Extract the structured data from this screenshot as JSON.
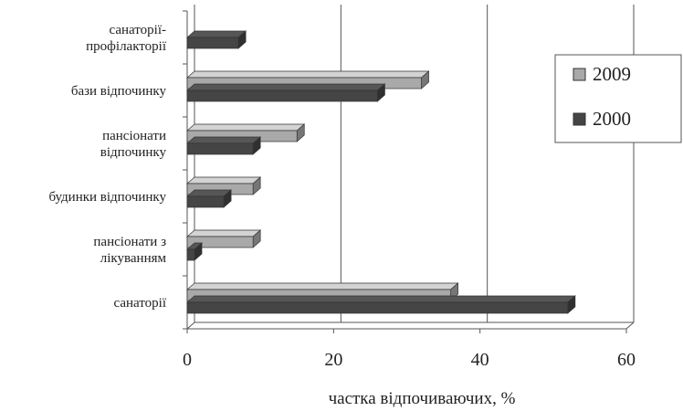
{
  "chart_data": {
    "type": "bar",
    "orientation": "horizontal",
    "categories": [
      [
        "санаторії-",
        "профілакторії"
      ],
      [
        "бази відпочинку"
      ],
      [
        "пансіонати",
        "відпочинку"
      ],
      [
        "будинки відпочинку"
      ],
      [
        "пансіонати з",
        "лікуванням"
      ],
      [
        "санаторії"
      ]
    ],
    "series": [
      {
        "name": "2009",
        "color": "#a9a9a9",
        "values": [
          0,
          32,
          15,
          9,
          9,
          36
        ]
      },
      {
        "name": "2000",
        "color": "#454545",
        "values": [
          7,
          26,
          9,
          5,
          1,
          52
        ]
      }
    ],
    "xlim": [
      0,
      60
    ],
    "x_ticks": [
      0,
      20,
      40,
      60
    ],
    "xlabel": "частка відпочиваючих, %",
    "ylabel": "",
    "grid": "vertical",
    "legend_position": "right"
  }
}
